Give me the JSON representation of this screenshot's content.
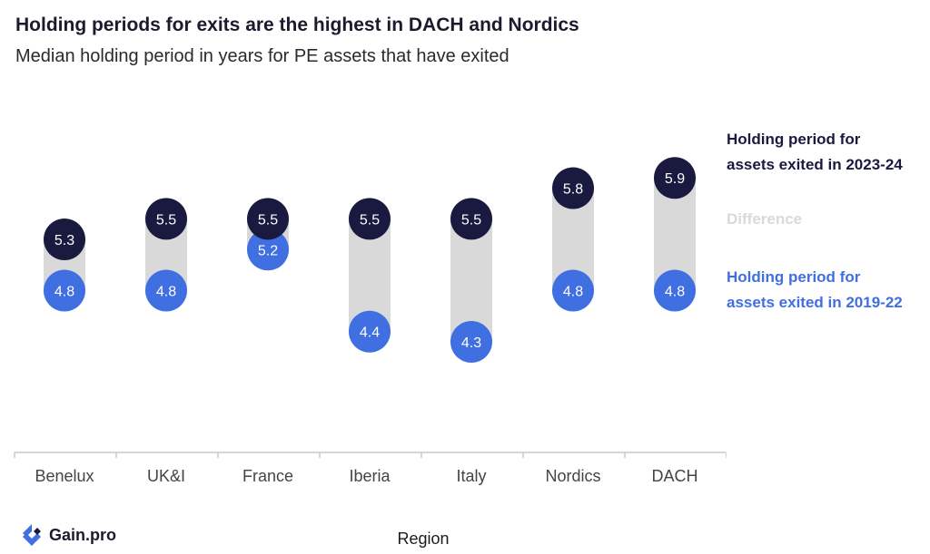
{
  "title": "Holding periods for exits are the highest in DACH and Nordics",
  "subtitle": "Median holding period in years for PE assets that have exited",
  "legend": {
    "recent_line1": "Holding period for",
    "recent_line2": "assets exited in 2023-24",
    "difference": "Difference",
    "old_line1": "Holding period for",
    "old_line2": "assets exited in 2019-22"
  },
  "brand": "Gain.pro",
  "colors": {
    "recent": "#1a1a40",
    "old": "#3f6fe0",
    "difference": "#d9d9d9",
    "axis": "#c8c8c8"
  },
  "chart_data": {
    "type": "dumbbell",
    "categories": [
      "Benelux",
      "UK&I",
      "France",
      "Iberia",
      "Italy",
      "Nordics",
      "DACH"
    ],
    "series": [
      {
        "name": "Holding period for assets exited in 2023-24",
        "values": [
          5.3,
          5.5,
          5.5,
          5.5,
          5.5,
          5.8,
          5.9
        ]
      },
      {
        "name": "Holding period for assets exited in 2019-22",
        "values": [
          4.8,
          4.8,
          5.2,
          4.4,
          4.3,
          4.8,
          4.8
        ]
      }
    ],
    "xlabel": "Region",
    "ylabel": "",
    "grid": false
  }
}
